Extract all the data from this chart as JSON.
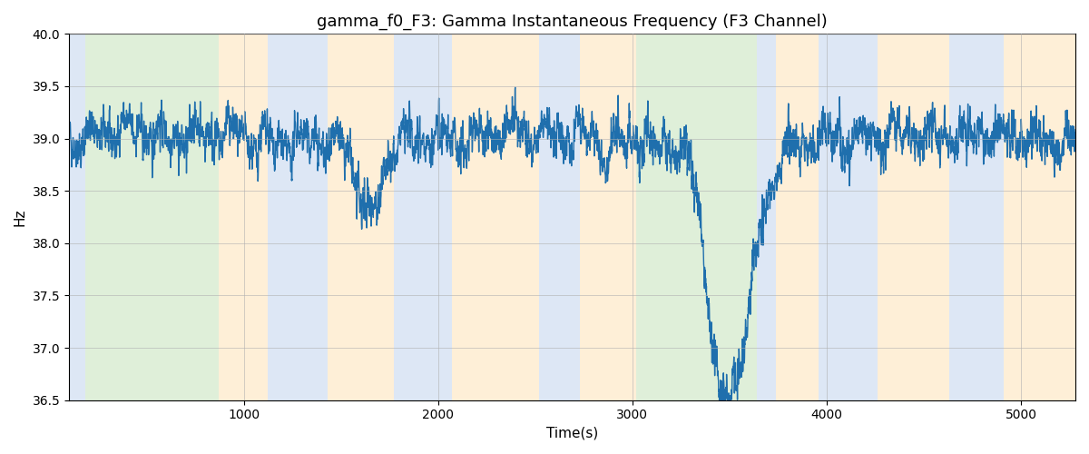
{
  "title": "gamma_f0_F3: Gamma Instantaneous Frequency (F3 Channel)",
  "xlabel": "Time(s)",
  "ylabel": "Hz",
  "xlim": [
    100,
    5280
  ],
  "ylim": [
    36.5,
    40.0
  ],
  "line_color": "#1f6fad",
  "line_width": 1.0,
  "background_color": "#ffffff",
  "grid_color": "#b0b0b0",
  "bands": [
    {
      "xmin": 100,
      "xmax": 185,
      "color": "#aec6e8",
      "alpha": 0.42
    },
    {
      "xmin": 185,
      "xmax": 870,
      "color": "#b5d9a5",
      "alpha": 0.42
    },
    {
      "xmin": 870,
      "xmax": 1125,
      "color": "#fdd9a0",
      "alpha": 0.42
    },
    {
      "xmin": 1125,
      "xmax": 1430,
      "color": "#aec6e8",
      "alpha": 0.42
    },
    {
      "xmin": 1430,
      "xmax": 1770,
      "color": "#fdd9a0",
      "alpha": 0.42
    },
    {
      "xmin": 1770,
      "xmax": 2070,
      "color": "#aec6e8",
      "alpha": 0.42
    },
    {
      "xmin": 2070,
      "xmax": 2520,
      "color": "#fdd9a0",
      "alpha": 0.42
    },
    {
      "xmin": 2520,
      "xmax": 2730,
      "color": "#aec6e8",
      "alpha": 0.42
    },
    {
      "xmin": 2730,
      "xmax": 3020,
      "color": "#fdd9a0",
      "alpha": 0.42
    },
    {
      "xmin": 3020,
      "xmax": 3640,
      "color": "#b5d9a5",
      "alpha": 0.42
    },
    {
      "xmin": 3640,
      "xmax": 3740,
      "color": "#aec6e8",
      "alpha": 0.42
    },
    {
      "xmin": 3740,
      "xmax": 3960,
      "color": "#fdd9a0",
      "alpha": 0.42
    },
    {
      "xmin": 3960,
      "xmax": 4260,
      "color": "#aec6e8",
      "alpha": 0.42
    },
    {
      "xmin": 4260,
      "xmax": 4630,
      "color": "#fdd9a0",
      "alpha": 0.42
    },
    {
      "xmin": 4630,
      "xmax": 4910,
      "color": "#aec6e8",
      "alpha": 0.42
    },
    {
      "xmin": 4910,
      "xmax": 5280,
      "color": "#fdd9a0",
      "alpha": 0.42
    }
  ],
  "seed": 42,
  "n_points": 5200,
  "t_start": 100,
  "t_end": 5280,
  "base_freq": 39.0,
  "noise_amp": 0.18,
  "title_fontsize": 13
}
